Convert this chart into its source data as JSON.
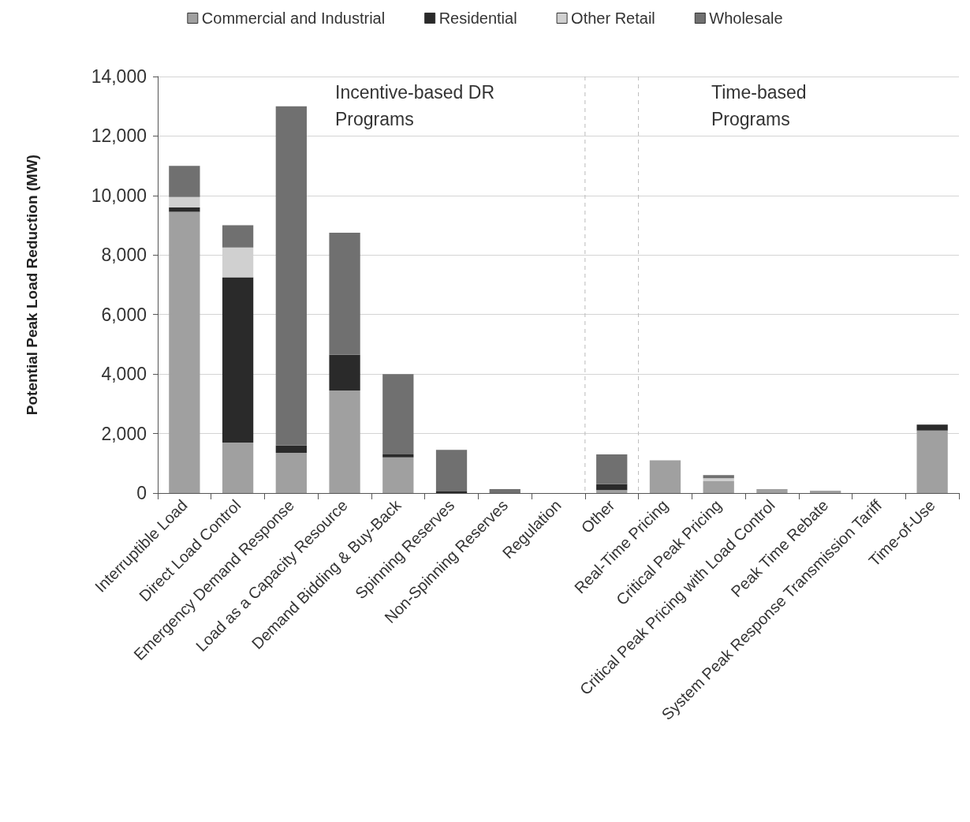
{
  "chart_data": {
    "type": "bar",
    "stacked": true,
    "ylabel": "Potential Peak Load Reduction (MW)",
    "categories": [
      "Interruptible Load",
      "Direct Load Control",
      "Emergency Demand Response",
      "Load as a Capacity Resource",
      "Demand Bidding & Buy-Back",
      "Spinning Reserves",
      "Non-Spinning Reserves",
      "Regulation",
      "Other",
      "Real-Time Pricing",
      "Critical Peak Pricing",
      "Critical Peak Pricing with Load Control",
      "Peak Time Rebate",
      "System Peak Response Transmission Tariff",
      "Time-of-Use"
    ],
    "series": [
      {
        "name": "Commercial and Industrial",
        "color": "#a0a0a0",
        "values": [
          9450,
          1700,
          1350,
          3450,
          1200,
          0,
          0,
          0,
          100,
          1100,
          400,
          130,
          80,
          0,
          2100
        ]
      },
      {
        "name": "Residential",
        "color": "#2a2a2a",
        "values": [
          150,
          5550,
          250,
          1200,
          100,
          50,
          0,
          0,
          200,
          0,
          0,
          0,
          0,
          0,
          200
        ]
      },
      {
        "name": "Other Retail",
        "color": "#d0d0d0",
        "values": [
          350,
          1000,
          0,
          0,
          0,
          0,
          0,
          0,
          0,
          0,
          100,
          0,
          0,
          0,
          0
        ]
      },
      {
        "name": "Wholesale",
        "color": "#707070",
        "values": [
          1050,
          750,
          11400,
          4100,
          2700,
          1400,
          130,
          0,
          1000,
          0,
          100,
          0,
          0,
          0,
          0
        ]
      }
    ],
    "ylim": [
      0,
      14000
    ],
    "yticks": [
      0,
      {
        "value": 2000,
        "label": "2,000"
      },
      {
        "value": 4000,
        "label": "4,000"
      },
      {
        "value": 6000,
        "label": "6,000"
      },
      {
        "value": 8000,
        "label": "8,000"
      },
      {
        "value": 10000,
        "label": "10,000"
      },
      {
        "value": 12000,
        "label": "12,000"
      },
      {
        "value": 14000,
        "label": "14,000"
      }
    ],
    "grid": "y",
    "legend": "top",
    "annotations": [
      "Incentive-based DR Programs",
      "Time-based Programs"
    ]
  }
}
